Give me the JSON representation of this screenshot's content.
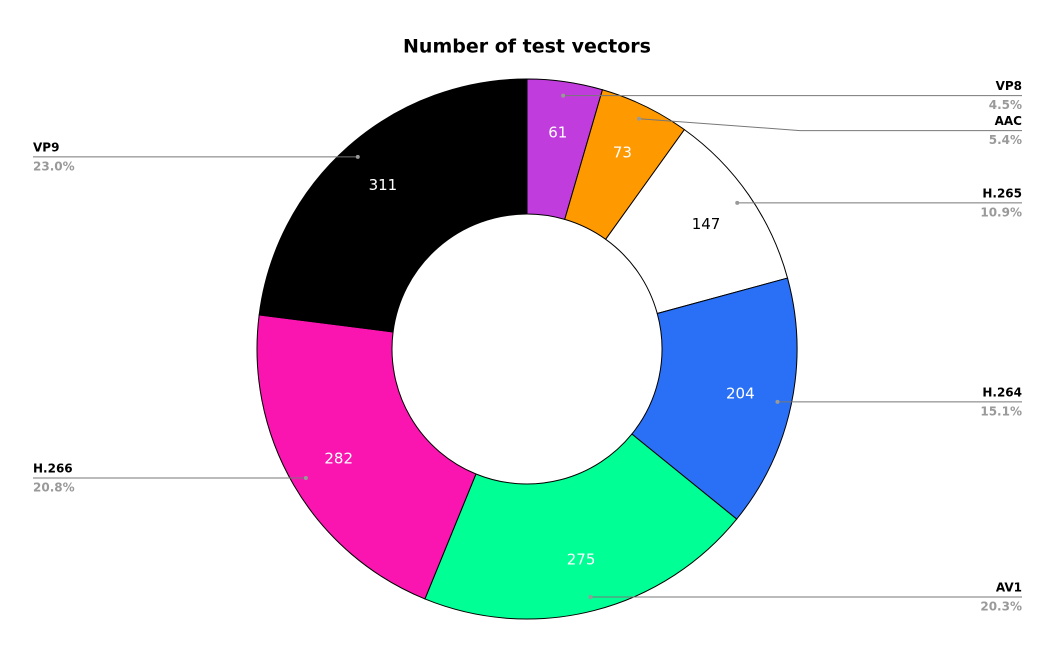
{
  "chart_data": {
    "type": "donut",
    "title": "Number of test vectors",
    "categories": [
      "VP8",
      "AAC",
      "H.265",
      "H.264",
      "AV1",
      "H.266",
      "VP9"
    ],
    "values": [
      61,
      73,
      147,
      204,
      275,
      282,
      311
    ],
    "percent_labels": [
      "4.5%",
      "5.4%",
      "10.9%",
      "15.1%",
      "20.3%",
      "20.8%",
      "23.0%"
    ],
    "colors": [
      "#c13cdc",
      "#ff9900",
      "#ffffff",
      "#2a70f6",
      "#00ff94",
      "#fa14b0",
      "#000000"
    ]
  }
}
